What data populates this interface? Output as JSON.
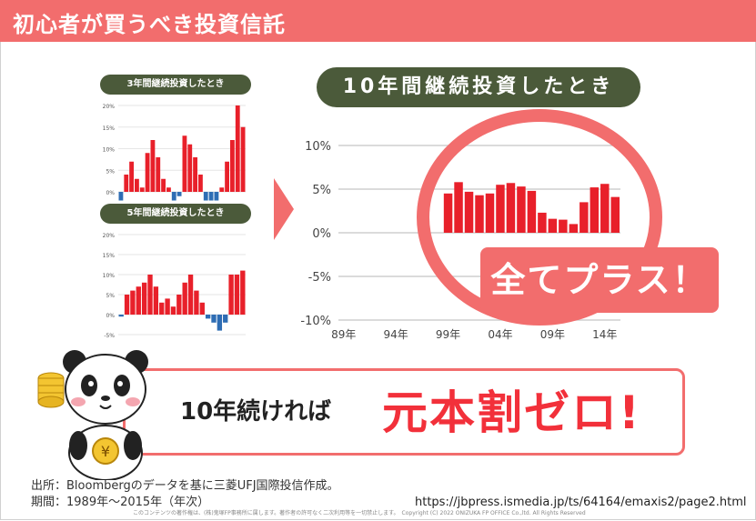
{
  "header": {
    "title": "初心者が買うべき投資信託"
  },
  "small_chart_3y": {
    "title": "3年間継続投資したとき",
    "ticks": [
      "20%",
      "15%",
      "10%",
      "5%",
      "0%"
    ],
    "values": [
      -2,
      4,
      7,
      3,
      1,
      9,
      12,
      8,
      3,
      1,
      -2,
      -1,
      13,
      11,
      8,
      4,
      -2,
      -2,
      -2,
      1,
      7,
      12,
      20,
      15
    ]
  },
  "small_chart_5y": {
    "title": "5年間継続投資したとき",
    "ticks": [
      "20%",
      "15%",
      "10%",
      "5%",
      "0%",
      "-5%"
    ],
    "values": [
      -0.5,
      5,
      6,
      7,
      8,
      10,
      7,
      3,
      4,
      2,
      5,
      8,
      10,
      6,
      3,
      -1,
      -2,
      -4,
      -2,
      10,
      10,
      11
    ]
  },
  "chart_data": {
    "type": "bar",
    "title": "10年間継続投資したとき",
    "x_ticks": [
      "89年",
      "94年",
      "99年",
      "04年",
      "09年",
      "14年"
    ],
    "y_ticks": [
      "10%",
      "5%",
      "0%",
      "-5%",
      "-10%"
    ],
    "ylim": [
      -10,
      10
    ],
    "values": [
      4.5,
      5.8,
      4.7,
      4.3,
      4.5,
      5.5,
      5.7,
      5.3,
      4.8,
      2.3,
      1.6,
      1.5,
      1,
      3.5,
      5.2,
      5.6,
      4.1
    ],
    "grid": true
  },
  "callout": {
    "text": "全てプラス！"
  },
  "banner": {
    "lead": "10年続ければ",
    "emphasis": "元本割ゼロ!"
  },
  "source": {
    "line1": "出所：Bloombergのデータを基に三菱UFJ国際投信作成。",
    "line2": "期間：1989年～2015年（年次）"
  },
  "url": "https://jbpress.ismedia.jp/ts/64164/emaxis2/page2.html",
  "copyright": "このコンテンツの著作権は、(株)鬼塚FP事務所に属します。著作者の許可なく二次利用等を一切禁止します。　Copyright (C) 2022 ONIZUKA FP OFFICE Co.,ltd. All Rights Reserved",
  "colors": {
    "accent": "#f26d6d",
    "bar_positive": "#e8202a",
    "bar_negative": "#2e6db4",
    "pill": "#4b5a3a"
  }
}
